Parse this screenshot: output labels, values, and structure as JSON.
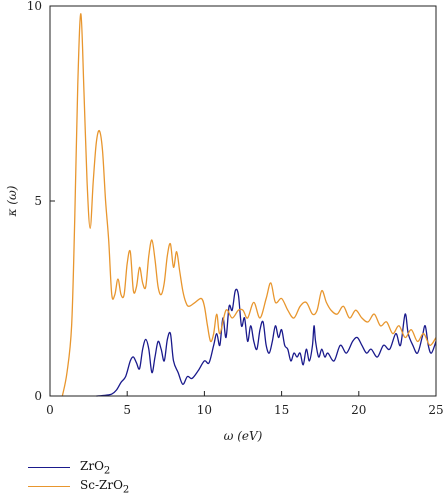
{
  "chart_data": {
    "type": "line",
    "title": "",
    "xlabel": "ω (eV)",
    "ylabel": "κ (ω)",
    "xlim": [
      0,
      25
    ],
    "ylim": [
      0,
      10
    ],
    "x_ticks": [
      0,
      5,
      10,
      15,
      20,
      25
    ],
    "y_ticks": [
      0,
      5,
      10
    ],
    "grid": false,
    "legend_position": "bottom-left",
    "series": [
      {
        "name": "ZrO2",
        "label_main": "ZrO",
        "label_sub": "2",
        "color": "#1a1a8c",
        "points": [
          [
            3.0,
            0
          ],
          [
            3.6,
            0.02
          ],
          [
            4.0,
            0.05
          ],
          [
            4.3,
            0.15
          ],
          [
            4.6,
            0.35
          ],
          [
            4.9,
            0.5
          ],
          [
            5.2,
            0.9
          ],
          [
            5.4,
            1.0
          ],
          [
            5.6,
            0.85
          ],
          [
            5.8,
            0.7
          ],
          [
            6.0,
            1.2
          ],
          [
            6.2,
            1.45
          ],
          [
            6.4,
            1.2
          ],
          [
            6.6,
            0.6
          ],
          [
            6.8,
            1.0
          ],
          [
            7.0,
            1.4
          ],
          [
            7.2,
            1.2
          ],
          [
            7.4,
            0.9
          ],
          [
            7.6,
            1.45
          ],
          [
            7.8,
            1.6
          ],
          [
            8.0,
            0.9
          ],
          [
            8.3,
            0.6
          ],
          [
            8.6,
            0.3
          ],
          [
            8.9,
            0.5
          ],
          [
            9.2,
            0.45
          ],
          [
            9.6,
            0.65
          ],
          [
            10.0,
            0.9
          ],
          [
            10.3,
            0.85
          ],
          [
            10.6,
            1.3
          ],
          [
            10.8,
            1.6
          ],
          [
            11.0,
            1.3
          ],
          [
            11.2,
            2.0
          ],
          [
            11.4,
            1.5
          ],
          [
            11.6,
            2.3
          ],
          [
            11.8,
            2.2
          ],
          [
            12.0,
            2.7
          ],
          [
            12.2,
            2.6
          ],
          [
            12.4,
            1.8
          ],
          [
            12.6,
            2.0
          ],
          [
            12.8,
            1.4
          ],
          [
            13.0,
            1.8
          ],
          [
            13.2,
            1.4
          ],
          [
            13.4,
            1.2
          ],
          [
            13.6,
            1.7
          ],
          [
            13.8,
            1.9
          ],
          [
            14.0,
            1.3
          ],
          [
            14.2,
            1.1
          ],
          [
            14.4,
            1.4
          ],
          [
            14.6,
            1.8
          ],
          [
            14.8,
            1.5
          ],
          [
            15.0,
            1.7
          ],
          [
            15.2,
            1.3
          ],
          [
            15.4,
            1.2
          ],
          [
            15.6,
            0.9
          ],
          [
            15.8,
            1.1
          ],
          [
            16.0,
            1.0
          ],
          [
            16.2,
            1.1
          ],
          [
            16.4,
            0.8
          ],
          [
            16.6,
            1.2
          ],
          [
            16.8,
            0.9
          ],
          [
            17.0,
            1.3
          ],
          [
            17.1,
            1.8
          ],
          [
            17.2,
            1.4
          ],
          [
            17.4,
            1.0
          ],
          [
            17.6,
            1.2
          ],
          [
            17.8,
            1.0
          ],
          [
            18.0,
            1.1
          ],
          [
            18.4,
            0.9
          ],
          [
            18.8,
            1.3
          ],
          [
            19.2,
            1.1
          ],
          [
            19.6,
            1.4
          ],
          [
            19.9,
            1.5
          ],
          [
            20.2,
            1.3
          ],
          [
            20.5,
            1.1
          ],
          [
            20.8,
            1.2
          ],
          [
            21.2,
            1.0
          ],
          [
            21.6,
            1.3
          ],
          [
            22.0,
            1.2
          ],
          [
            22.4,
            1.6
          ],
          [
            22.7,
            1.3
          ],
          [
            23.0,
            2.1
          ],
          [
            23.2,
            1.6
          ],
          [
            23.5,
            1.3
          ],
          [
            23.8,
            1.1
          ],
          [
            24.1,
            1.5
          ],
          [
            24.3,
            1.8
          ],
          [
            24.5,
            1.3
          ],
          [
            24.7,
            1.1
          ],
          [
            25.0,
            1.4
          ]
        ]
      },
      {
        "name": "Sc-ZrO2",
        "label_main": "Sc-ZrO",
        "label_sub": "2",
        "color": "#e8962e",
        "points": [
          [
            0.8,
            0
          ],
          [
            1.1,
            0.6
          ],
          [
            1.4,
            1.8
          ],
          [
            1.6,
            4.5
          ],
          [
            1.8,
            8.0
          ],
          [
            2.0,
            9.8
          ],
          [
            2.2,
            7.8
          ],
          [
            2.4,
            5.5
          ],
          [
            2.6,
            4.3
          ],
          [
            2.8,
            5.5
          ],
          [
            3.0,
            6.5
          ],
          [
            3.2,
            6.8
          ],
          [
            3.4,
            6.3
          ],
          [
            3.6,
            5.0
          ],
          [
            3.8,
            4.0
          ],
          [
            4.0,
            2.6
          ],
          [
            4.2,
            2.6
          ],
          [
            4.4,
            3.0
          ],
          [
            4.6,
            2.6
          ],
          [
            4.8,
            2.6
          ],
          [
            5.0,
            3.4
          ],
          [
            5.2,
            3.7
          ],
          [
            5.4,
            2.7
          ],
          [
            5.6,
            2.8
          ],
          [
            5.8,
            3.3
          ],
          [
            6.0,
            2.9
          ],
          [
            6.2,
            2.8
          ],
          [
            6.4,
            3.6
          ],
          [
            6.6,
            4.0
          ],
          [
            6.8,
            3.5
          ],
          [
            7.0,
            2.8
          ],
          [
            7.2,
            2.6
          ],
          [
            7.4,
            2.9
          ],
          [
            7.6,
            3.6
          ],
          [
            7.8,
            3.9
          ],
          [
            8.0,
            3.3
          ],
          [
            8.2,
            3.7
          ],
          [
            8.4,
            3.2
          ],
          [
            8.6,
            2.7
          ],
          [
            8.8,
            2.4
          ],
          [
            9.0,
            2.3
          ],
          [
            9.4,
            2.4
          ],
          [
            9.8,
            2.5
          ],
          [
            10.0,
            2.3
          ],
          [
            10.2,
            1.8
          ],
          [
            10.4,
            1.4
          ],
          [
            10.6,
            1.6
          ],
          [
            10.8,
            2.1
          ],
          [
            11.0,
            1.6
          ],
          [
            11.4,
            2.2
          ],
          [
            11.8,
            2.0
          ],
          [
            12.2,
            2.2
          ],
          [
            12.5,
            2.2
          ],
          [
            12.8,
            2.0
          ],
          [
            13.2,
            2.4
          ],
          [
            13.6,
            2.0
          ],
          [
            14.0,
            2.5
          ],
          [
            14.3,
            2.9
          ],
          [
            14.6,
            2.4
          ],
          [
            15.0,
            2.5
          ],
          [
            15.4,
            2.2
          ],
          [
            15.8,
            2.0
          ],
          [
            16.2,
            2.3
          ],
          [
            16.6,
            2.4
          ],
          [
            17.0,
            2.1
          ],
          [
            17.3,
            2.2
          ],
          [
            17.6,
            2.7
          ],
          [
            17.9,
            2.4
          ],
          [
            18.2,
            2.2
          ],
          [
            18.6,
            2.1
          ],
          [
            19.0,
            2.3
          ],
          [
            19.4,
            2.0
          ],
          [
            19.8,
            2.2
          ],
          [
            20.2,
            2.0
          ],
          [
            20.6,
            1.9
          ],
          [
            21.0,
            2.1
          ],
          [
            21.4,
            1.8
          ],
          [
            21.8,
            1.9
          ],
          [
            22.2,
            1.6
          ],
          [
            22.6,
            1.8
          ],
          [
            23.0,
            1.5
          ],
          [
            23.4,
            1.7
          ],
          [
            23.8,
            1.4
          ],
          [
            24.2,
            1.6
          ],
          [
            24.6,
            1.3
          ],
          [
            25.0,
            1.5
          ]
        ]
      }
    ]
  }
}
